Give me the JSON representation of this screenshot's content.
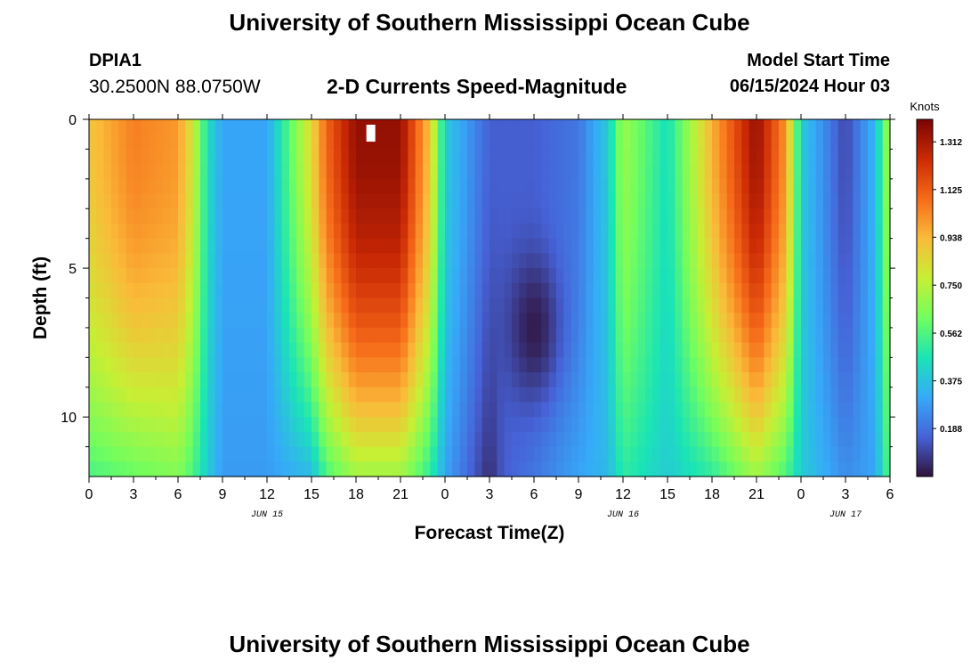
{
  "header": {
    "title": "University of Southern Mississippi Ocean Cube",
    "station_id": "DPIA1",
    "coords": "30.2500N  88.0750W",
    "subtitle": "2-D Currents Speed-Magnitude",
    "model_start_label": "Model Start Time",
    "model_start_value": "06/15/2024 Hour 03"
  },
  "footer": {
    "title": "University of Southern Mississippi Ocean Cube"
  },
  "chart_data": {
    "type": "heatmap",
    "xlabel": "Forecast Time(Z)",
    "ylabel": "Depth (ft)",
    "x_range_hours": [
      0,
      54
    ],
    "ylim": [
      0,
      12
    ],
    "y_inverted": true,
    "x_ticks": [
      {
        "hour": 0,
        "label": "0"
      },
      {
        "hour": 3,
        "label": "3"
      },
      {
        "hour": 6,
        "label": "6"
      },
      {
        "hour": 9,
        "label": "9"
      },
      {
        "hour": 12,
        "label": "12"
      },
      {
        "hour": 15,
        "label": "15"
      },
      {
        "hour": 18,
        "label": "18"
      },
      {
        "hour": 21,
        "label": "21"
      },
      {
        "hour": 24,
        "label": "0"
      },
      {
        "hour": 27,
        "label": "3"
      },
      {
        "hour": 30,
        "label": "6"
      },
      {
        "hour": 33,
        "label": "9"
      },
      {
        "hour": 36,
        "label": "12"
      },
      {
        "hour": 39,
        "label": "15"
      },
      {
        "hour": 42,
        "label": "18"
      },
      {
        "hour": 45,
        "label": "21"
      },
      {
        "hour": 48,
        "label": "0"
      },
      {
        "hour": 51,
        "label": "3"
      },
      {
        "hour": 54,
        "label": "6"
      }
    ],
    "date_labels": [
      {
        "hour": 12,
        "label": "JUN 15"
      },
      {
        "hour": 36,
        "label": "JUN 16"
      },
      {
        "hour": 51,
        "label": "JUN 17"
      }
    ],
    "y_ticks": [
      0,
      5,
      10
    ],
    "colorbar": {
      "title": "Knots",
      "min": 0.0,
      "max": 1.4,
      "ticks": [
        0.188,
        0.375,
        0.562,
        0.75,
        0.938,
        1.125,
        1.312
      ],
      "tick_labels": [
        "0.188",
        "0.375",
        "0.562",
        "0.750",
        "0.938",
        "1.125",
        "1.312"
      ],
      "colors": [
        "#30123b",
        "#4662d7",
        "#36aaf9",
        "#1ae4b6",
        "#72fe5e",
        "#c7ef34",
        "#fabb39",
        "#f66b19",
        "#cb2a04",
        "#7a0403"
      ]
    },
    "profile_times_hours": [
      0,
      3,
      6,
      7,
      8,
      9,
      12,
      15,
      16,
      18,
      21,
      23,
      24,
      27,
      28,
      30,
      33,
      35,
      36,
      39,
      42,
      45,
      47,
      48,
      51,
      53,
      54
    ],
    "surface_speed_knots": [
      0.9,
      1.05,
      1.0,
      0.8,
      0.45,
      0.3,
      0.3,
      0.85,
      1.1,
      1.35,
      1.35,
      0.9,
      0.4,
      0.15,
      0.15,
      0.15,
      0.2,
      0.4,
      0.7,
      0.45,
      0.95,
      1.35,
      1.0,
      0.4,
      0.1,
      0.35,
      0.75
    ],
    "bottom_speed_knots": [
      0.55,
      0.6,
      0.65,
      0.55,
      0.4,
      0.28,
      0.28,
      0.35,
      0.55,
      0.7,
      0.7,
      0.5,
      0.3,
      0.05,
      0.15,
      0.2,
      0.3,
      0.35,
      0.5,
      0.4,
      0.5,
      0.7,
      0.55,
      0.4,
      0.25,
      0.3,
      0.6
    ],
    "mid_depth_feature": {
      "hour": 30,
      "depth_ft": 7,
      "speed_knots": 0.02
    },
    "missing_cell": {
      "hour": 19,
      "depth_ft": 0.3
    }
  }
}
